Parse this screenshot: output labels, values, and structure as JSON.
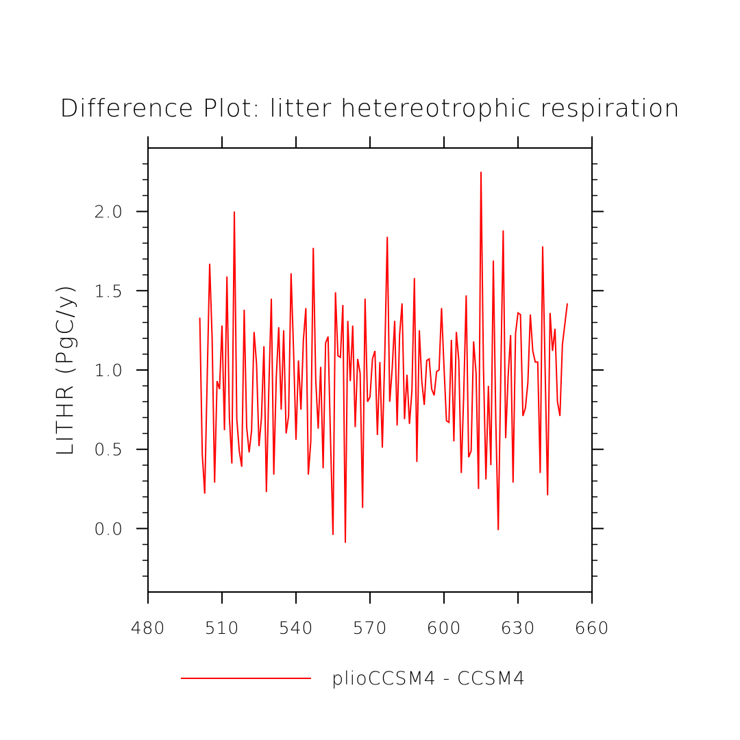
{
  "chart_data": {
    "type": "line",
    "title": "Difference Plot: litter hetereotrophic respiration",
    "xlabel": "",
    "ylabel": "LITHR  (PgC/y)",
    "xlim": [
      480,
      660
    ],
    "ylim": [
      -0.4,
      2.4
    ],
    "xticks": [
      480,
      510,
      540,
      570,
      600,
      630,
      660
    ],
    "xtick_labels": [
      "480",
      "510",
      "540",
      "570",
      "600",
      "630",
      "660"
    ],
    "yticks": [
      0.0,
      0.5,
      1.0,
      1.5,
      2.0
    ],
    "ytick_labels": [
      "0.0",
      "0.5",
      "1.0",
      "1.5",
      "2.0"
    ],
    "grid": false,
    "legend_position": "bottom",
    "series": [
      {
        "name": "plioCCSM4 - CCSM4",
        "color": "#ff0000",
        "x": [
          501,
          502,
          503,
          504,
          505,
          506,
          507,
          508,
          509,
          510,
          511,
          512,
          513,
          514,
          515,
          516,
          517,
          518,
          519,
          520,
          521,
          522,
          523,
          524,
          525,
          526,
          527,
          528,
          529,
          530,
          531,
          532,
          533,
          534,
          535,
          536,
          537,
          538,
          539,
          540,
          541,
          542,
          543,
          544,
          545,
          546,
          547,
          548,
          549,
          550,
          551,
          552,
          553,
          554,
          555,
          556,
          557,
          558,
          559,
          560,
          561,
          562,
          563,
          564,
          565,
          566,
          567,
          568,
          569,
          570,
          571,
          572,
          573,
          574,
          575,
          576,
          577,
          578,
          579,
          580,
          581,
          582,
          583,
          584,
          585,
          586,
          587,
          588,
          589,
          590,
          591,
          592,
          593,
          594,
          595,
          596,
          597,
          598,
          599,
          600,
          601,
          602,
          603,
          604,
          605,
          606,
          607,
          608,
          609,
          610,
          611,
          612,
          613,
          614,
          615,
          616,
          617,
          618,
          619,
          620,
          621,
          622,
          623,
          624,
          625,
          626,
          627,
          628,
          629,
          630,
          631,
          632,
          633,
          634,
          635,
          636,
          637,
          638,
          639,
          640,
          641,
          642,
          643,
          644,
          645,
          646,
          647,
          648,
          649,
          650
        ],
        "values": [
          1.33,
          0.47,
          0.22,
          0.95,
          1.67,
          1.2,
          0.29,
          0.93,
          0.88,
          1.28,
          0.62,
          1.59,
          0.7,
          0.41,
          2.0,
          0.69,
          0.49,
          0.39,
          1.38,
          0.64,
          0.48,
          0.62,
          1.24,
          1.04,
          0.52,
          0.7,
          1.15,
          0.23,
          0.89,
          1.45,
          0.34,
          0.95,
          1.27,
          0.75,
          1.25,
          0.6,
          0.71,
          1.61,
          1.13,
          0.56,
          1.06,
          0.75,
          1.19,
          1.39,
          0.34,
          0.55,
          1.77,
          0.94,
          0.63,
          1.02,
          0.38,
          1.17,
          1.21,
          0.56,
          -0.04,
          1.49,
          1.09,
          1.08,
          1.41,
          -0.09,
          1.31,
          0.93,
          1.28,
          0.64,
          1.07,
          0.98,
          0.13,
          1.45,
          0.8,
          0.83,
          1.07,
          1.12,
          0.59,
          1.05,
          0.51,
          1.1,
          1.84,
          0.8,
          1.01,
          1.31,
          0.65,
          1.22,
          1.42,
          0.69,
          0.97,
          0.66,
          0.87,
          1.58,
          0.42,
          1.25,
          0.93,
          0.78,
          1.06,
          1.07,
          0.88,
          0.84,
          0.99,
          1.0,
          1.39,
          1.02,
          0.68,
          0.67,
          1.19,
          0.55,
          1.24,
          1.06,
          0.35,
          0.85,
          1.47,
          0.45,
          0.49,
          1.18,
          0.98,
          0.25,
          2.25,
          1.01,
          0.31,
          0.9,
          0.4,
          1.69,
          0.68,
          -0.01,
          0.95,
          1.88,
          0.57,
          0.96,
          1.22,
          0.29,
          1.23,
          1.36,
          1.35,
          0.71,
          0.76,
          0.92,
          1.35,
          1.12,
          1.05,
          1.05,
          0.35,
          1.78,
          1.0,
          0.21,
          1.36,
          1.12,
          1.26,
          0.8,
          0.71,
          1.16,
          1.29,
          1.42
        ]
      }
    ]
  }
}
